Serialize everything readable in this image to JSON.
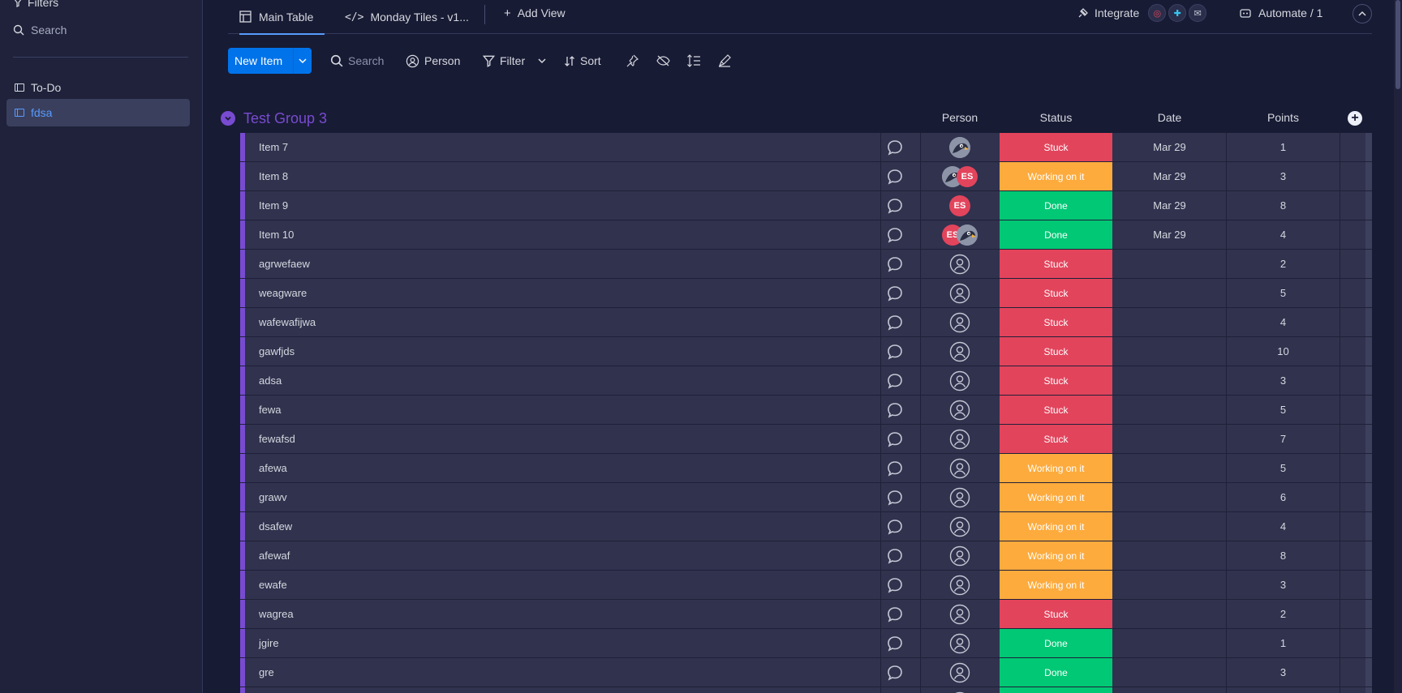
{
  "sidebar": {
    "filters_label": "Filters",
    "search_label": "Search",
    "boards": [
      {
        "label": "To-Do",
        "active": false
      },
      {
        "label": "fdsa",
        "active": true
      }
    ]
  },
  "topbar": {
    "tabs": [
      {
        "label": "Main Table",
        "icon": "table-icon",
        "active": true
      },
      {
        "label": "Monday Tiles - v1...",
        "icon": "code-icon",
        "active": false
      }
    ],
    "add_view_label": "Add View",
    "integrate_label": "Integrate",
    "automate_label": "Automate / 1"
  },
  "toolbar": {
    "new_item_label": "New Item",
    "search_placeholder": "Search",
    "person_label": "Person",
    "filter_label": "Filter",
    "sort_label": "Sort"
  },
  "group": {
    "title": "Test Group 3",
    "color": "#784bd1",
    "columns": {
      "person": "Person",
      "status": "Status",
      "date": "Date",
      "points": "Points"
    }
  },
  "status_colors": {
    "Stuck": "#e2445c",
    "Working on it": "#fdab3d",
    "Done": "#00c875"
  },
  "rows": [
    {
      "name": "Item 7",
      "people": [
        "bird"
      ],
      "status": "Stuck",
      "date": "Mar 29",
      "points": "1"
    },
    {
      "name": "Item 8",
      "people": [
        "bird",
        "ES"
      ],
      "status": "Working on it",
      "date": "Mar 29",
      "points": "3"
    },
    {
      "name": "Item 9",
      "people": [
        "ES"
      ],
      "status": "Done",
      "date": "Mar 29",
      "points": "8"
    },
    {
      "name": "Item 10",
      "people": [
        "ES",
        "bird"
      ],
      "status": "Done",
      "date": "Mar 29",
      "points": "4"
    },
    {
      "name": "agrwefaew",
      "people": [],
      "status": "Stuck",
      "date": "",
      "points": "2"
    },
    {
      "name": "weagware",
      "people": [],
      "status": "Stuck",
      "date": "",
      "points": "5"
    },
    {
      "name": "wafewafijwa",
      "people": [],
      "status": "Stuck",
      "date": "",
      "points": "4"
    },
    {
      "name": "gawfjds",
      "people": [],
      "status": "Stuck",
      "date": "",
      "points": "10"
    },
    {
      "name": "adsa",
      "people": [],
      "status": "Stuck",
      "date": "",
      "points": "3"
    },
    {
      "name": "fewa",
      "people": [],
      "status": "Stuck",
      "date": "",
      "points": "5"
    },
    {
      "name": "fewafsd",
      "people": [],
      "status": "Stuck",
      "date": "",
      "points": "7"
    },
    {
      "name": "afewa",
      "people": [],
      "status": "Working on it",
      "date": "",
      "points": "5"
    },
    {
      "name": "grawv",
      "people": [],
      "status": "Working on it",
      "date": "",
      "points": "6"
    },
    {
      "name": "dsafew",
      "people": [],
      "status": "Working on it",
      "date": "",
      "points": "4"
    },
    {
      "name": "afewaf",
      "people": [],
      "status": "Working on it",
      "date": "",
      "points": "8"
    },
    {
      "name": "ewafe",
      "people": [],
      "status": "Working on it",
      "date": "",
      "points": "3"
    },
    {
      "name": "wagrea",
      "people": [],
      "status": "Stuck",
      "date": "",
      "points": "2"
    },
    {
      "name": "jgire",
      "people": [],
      "status": "Done",
      "date": "",
      "points": "1"
    },
    {
      "name": "gre",
      "people": [],
      "status": "Done",
      "date": "",
      "points": "3"
    },
    {
      "name": "",
      "people": [],
      "status": "Done",
      "date": "",
      "points": ""
    }
  ]
}
